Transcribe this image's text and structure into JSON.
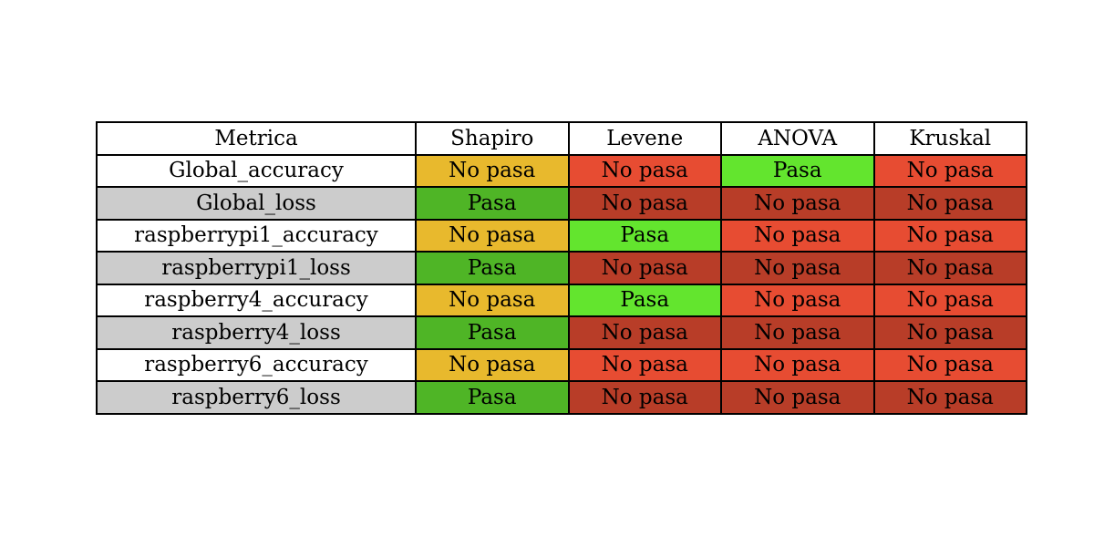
{
  "chart_data": {
    "type": "table",
    "columns": [
      "Metrica",
      "Shapiro",
      "Levene",
      "ANOVA",
      "Kruskal"
    ],
    "rows": [
      {
        "metric": "Global_accuracy",
        "values": [
          "No pasa",
          "No pasa",
          "Pasa",
          "No pasa"
        ]
      },
      {
        "metric": "Global_loss",
        "values": [
          "Pasa",
          "No pasa",
          "No pasa",
          "No pasa"
        ]
      },
      {
        "metric": "raspberrypi1_accuracy",
        "values": [
          "No pasa",
          "Pasa",
          "No pasa",
          "No pasa"
        ]
      },
      {
        "metric": "raspberrypi1_loss",
        "values": [
          "Pasa",
          "No pasa",
          "No pasa",
          "No pasa"
        ]
      },
      {
        "metric": "raspberry4_accuracy",
        "values": [
          "No pasa",
          "Pasa",
          "No pasa",
          "No pasa"
        ]
      },
      {
        "metric": "raspberry4_loss",
        "values": [
          "Pasa",
          "No pasa",
          "No pasa",
          "No pasa"
        ]
      },
      {
        "metric": "raspberry6_accuracy",
        "values": [
          "No pasa",
          "No pasa",
          "No pasa",
          "No pasa"
        ]
      },
      {
        "metric": "raspberry6_loss",
        "values": [
          "Pasa",
          "No pasa",
          "No pasa",
          "No pasa"
        ]
      }
    ],
    "colors": {
      "header_bg": "#ffffff",
      "metric_even_bg": "#ffffff",
      "metric_odd_bg": "#cccccc",
      "shapiro_pass": "#4fb526",
      "shapiro_fail": "#e8b92d",
      "pass_bright": "#63e52e",
      "fail_accuracy": "#e74c32",
      "fail_loss": "#b83d28"
    }
  }
}
